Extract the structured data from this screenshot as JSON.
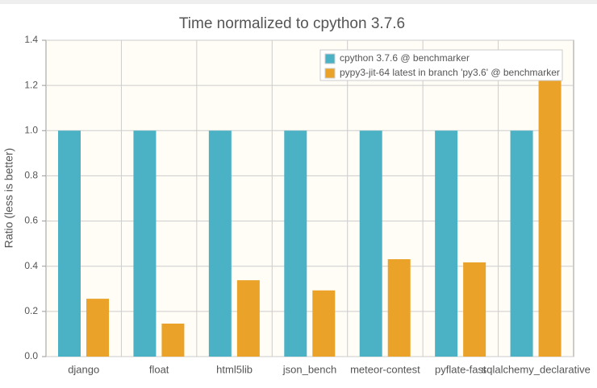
{
  "chart_data": {
    "type": "bar",
    "title": "Time normalized to cpython 3.7.6",
    "y_label": "Ratio  (less is better)",
    "categories": [
      "django",
      "float",
      "html5lib",
      "json_bench",
      "meteor-contest",
      "pyflate-fast",
      "sqlalchemy_declarative"
    ],
    "series": [
      {
        "name": "cpython 3.7.6 @ benchmarker",
        "color": "#4bb2c5",
        "values": [
          1.0,
          1.0,
          1.0,
          1.0,
          1.0,
          1.0,
          1.0
        ]
      },
      {
        "name": "pypy3-jit-64 latest in branch 'py3.6' @ benchmarker",
        "color": "#eaa228",
        "values": [
          0.256,
          0.146,
          0.338,
          0.293,
          0.431,
          0.417,
          1.247
        ]
      }
    ],
    "ylim": [
      0,
      1.4
    ],
    "yticks": [
      {
        "value": 0,
        "label": "0.0"
      },
      0.2,
      0.4,
      0.6,
      0.8,
      {
        "value": 1,
        "label": "1.0"
      },
      1.2,
      1.4
    ],
    "grid": true,
    "legend": "top-right"
  }
}
